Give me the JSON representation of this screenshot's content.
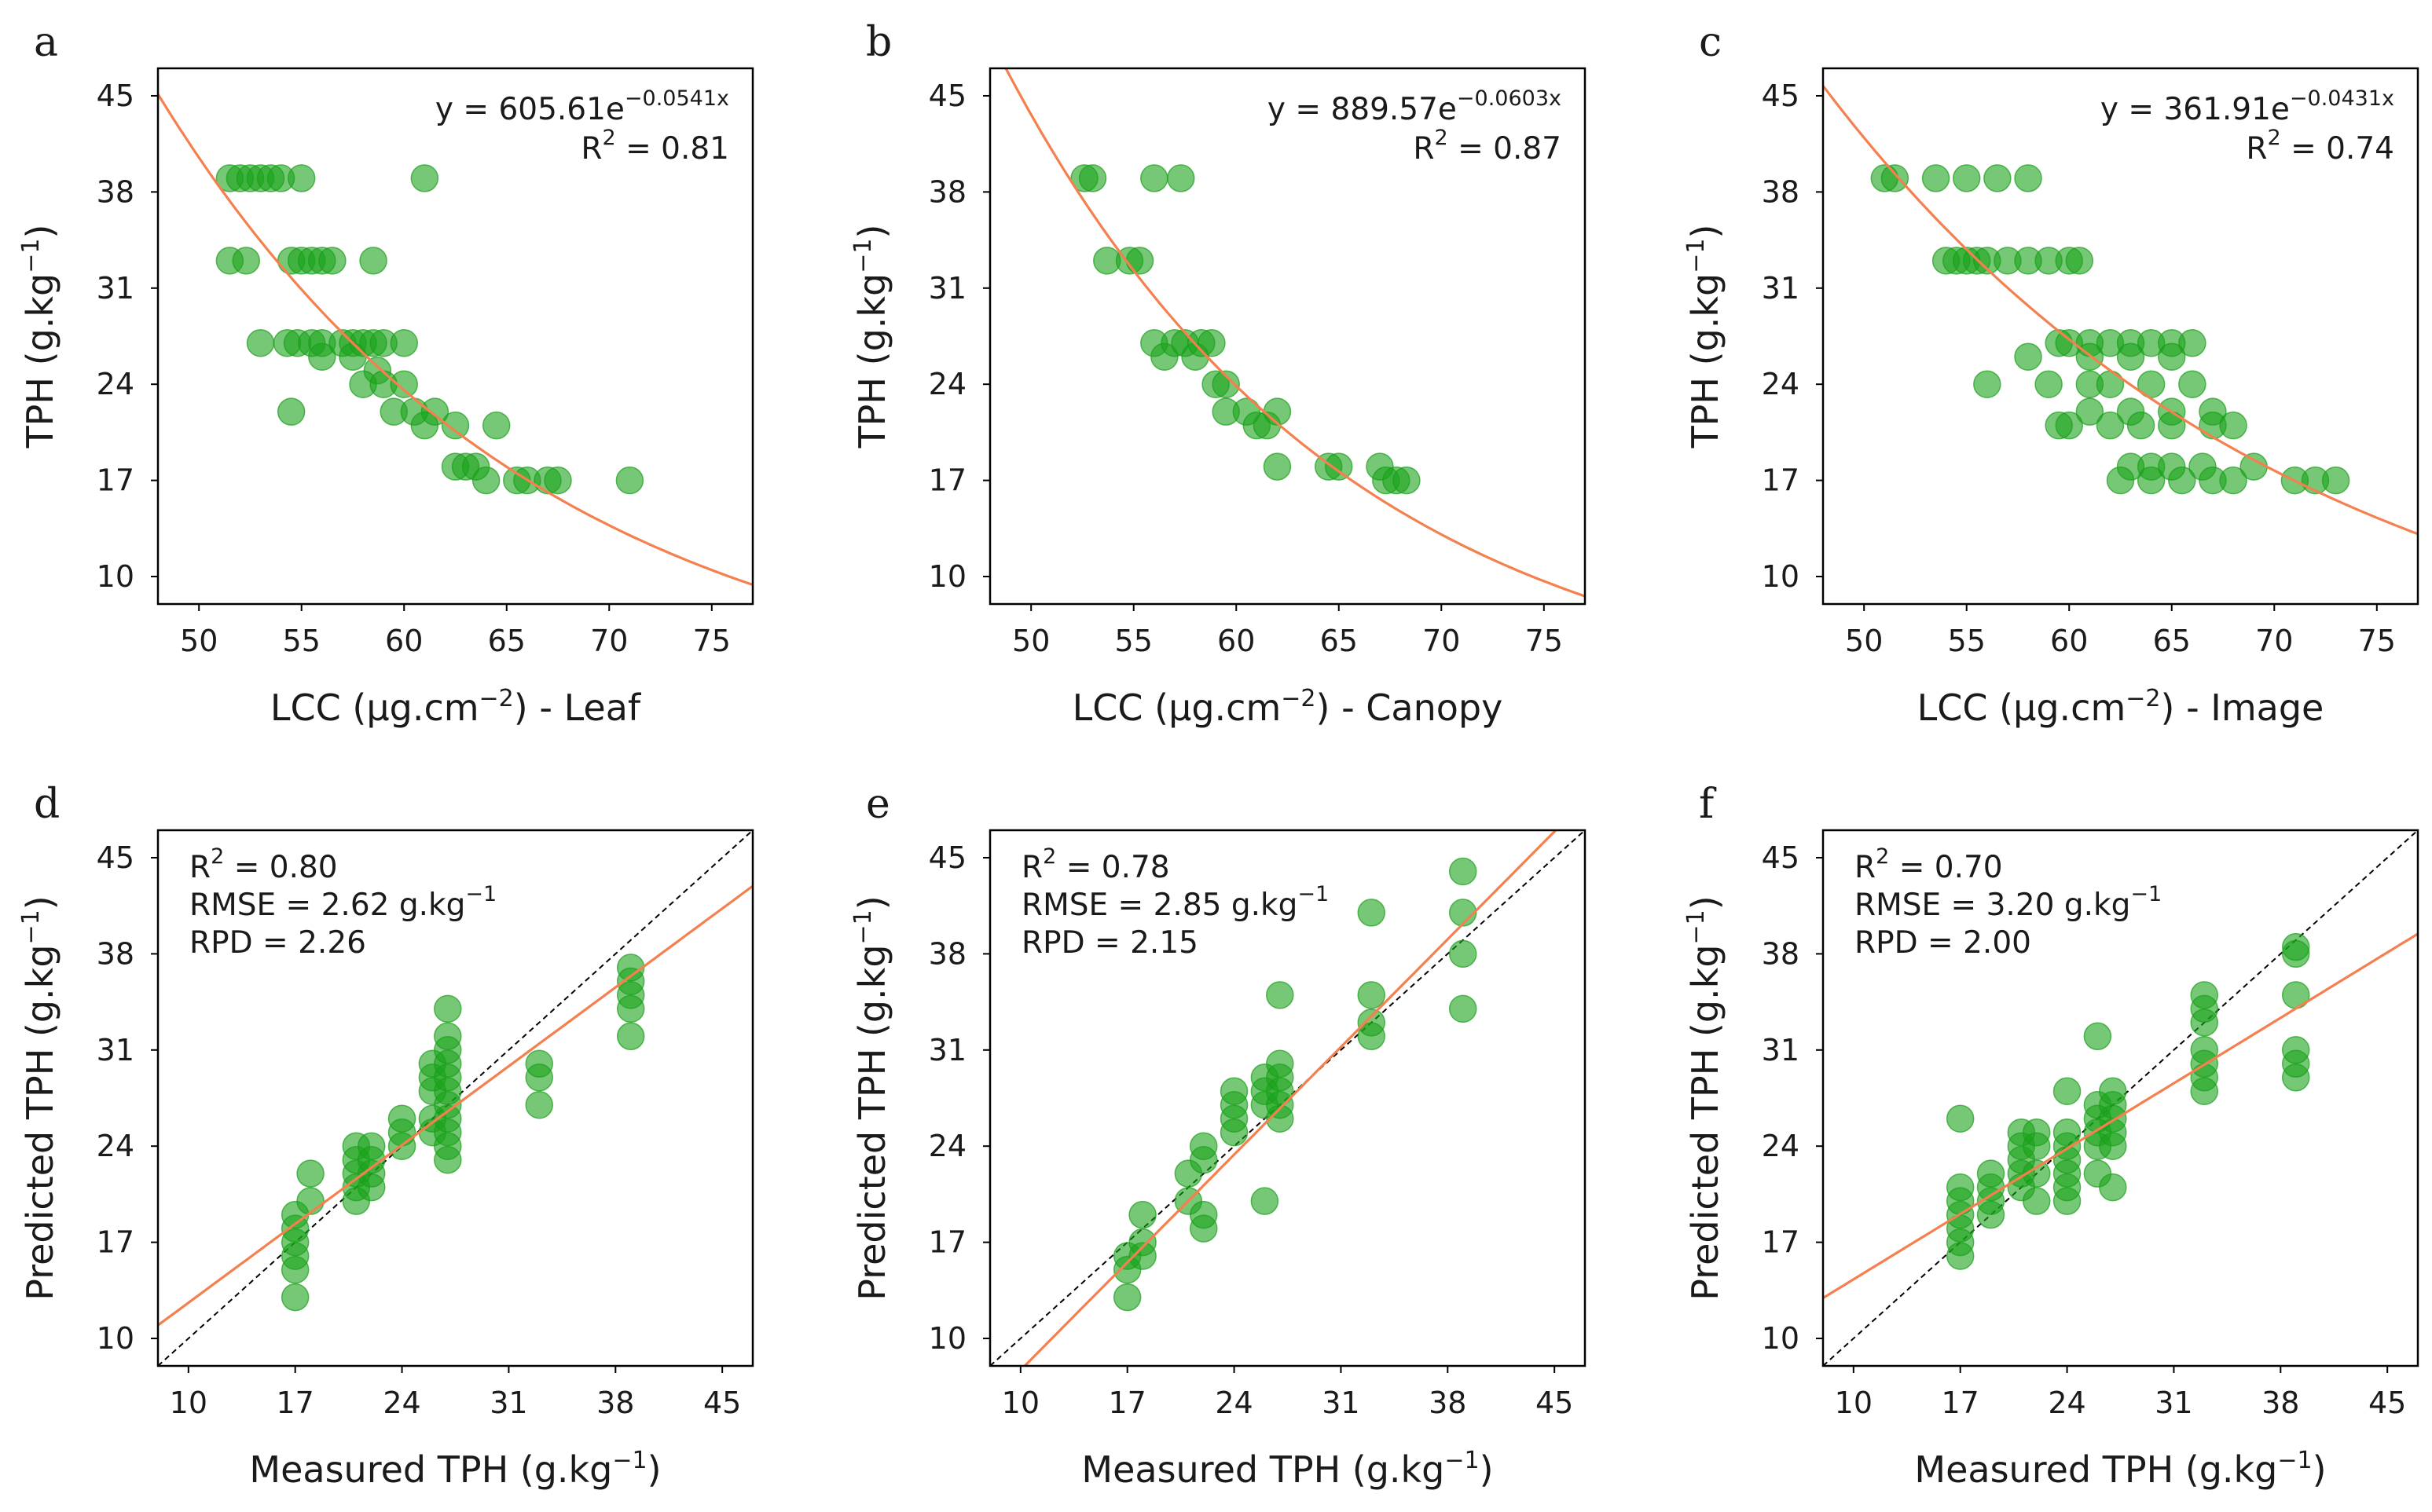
{
  "colors": {
    "point": "#1aa31a",
    "fit_line": "#f4804f",
    "one_to_one": "#000000"
  },
  "chart_data": [
    {
      "type": "scatter",
      "letter": "a",
      "xlabel": "LCC (µg.cm",
      "xlabel_exp": "−2",
      "xlabel_end": ") - Leaf",
      "ylabel": "TPH (g.kg",
      "ylabel_exp": "−1",
      "ylabel_end": ")",
      "xlim": [
        48,
        77
      ],
      "ylim": [
        8,
        47
      ],
      "xticks": [
        50,
        55,
        60,
        65,
        70,
        75
      ],
      "yticks": [
        10,
        17,
        24,
        31,
        38,
        45
      ],
      "equation": {
        "prefix": "y = 605.61e",
        "exponent": "−0.0541x"
      },
      "r2": {
        "label": "R",
        "sup": "2",
        "value": " = 0.81"
      },
      "fit": {
        "kind": "exp",
        "a": 605.61,
        "b": -0.0541
      },
      "points": [
        [
          51.5,
          39
        ],
        [
          52,
          39
        ],
        [
          52.5,
          39
        ],
        [
          53,
          39
        ],
        [
          53.5,
          39
        ],
        [
          54,
          39
        ],
        [
          55,
          39
        ],
        [
          61,
          39
        ],
        [
          51.5,
          33
        ],
        [
          52.3,
          33
        ],
        [
          54.5,
          33
        ],
        [
          55,
          33
        ],
        [
          55.5,
          33
        ],
        [
          56,
          33
        ],
        [
          56.5,
          33
        ],
        [
          58.5,
          33
        ],
        [
          53,
          27
        ],
        [
          54.3,
          27
        ],
        [
          54.8,
          27
        ],
        [
          55.5,
          27
        ],
        [
          56,
          27
        ],
        [
          57,
          27
        ],
        [
          57.5,
          27
        ],
        [
          58,
          27
        ],
        [
          58.5,
          27
        ],
        [
          59,
          27
        ],
        [
          60,
          27
        ],
        [
          56,
          26
        ],
        [
          57.5,
          26
        ],
        [
          58.7,
          25
        ],
        [
          58,
          24
        ],
        [
          59,
          24
        ],
        [
          60,
          24
        ],
        [
          54.5,
          22
        ],
        [
          59.5,
          22
        ],
        [
          60.5,
          22
        ],
        [
          61.5,
          22
        ],
        [
          61,
          21
        ],
        [
          62.5,
          21
        ],
        [
          64.5,
          21
        ],
        [
          62.5,
          18
        ],
        [
          63,
          18
        ],
        [
          63.5,
          18
        ],
        [
          64,
          17
        ],
        [
          65.5,
          17
        ],
        [
          66,
          17
        ],
        [
          67,
          17
        ],
        [
          67.5,
          17
        ],
        [
          71,
          17
        ]
      ]
    },
    {
      "type": "scatter",
      "letter": "b",
      "xlabel": "LCC (µg.cm",
      "xlabel_exp": "−2",
      "xlabel_end": ") - Canopy",
      "ylabel": "TPH (g.kg",
      "ylabel_exp": "−1",
      "ylabel_end": ")",
      "xlim": [
        48,
        77
      ],
      "ylim": [
        8,
        47
      ],
      "xticks": [
        50,
        55,
        60,
        65,
        70,
        75
      ],
      "yticks": [
        10,
        17,
        24,
        31,
        38,
        45
      ],
      "equation": {
        "prefix": "y = 889.57e",
        "exponent": "−0.0603x"
      },
      "r2": {
        "label": "R",
        "sup": "2",
        "value": " = 0.87"
      },
      "fit": {
        "kind": "exp",
        "a": 889.57,
        "b": -0.0603
      },
      "points": [
        [
          52.6,
          39
        ],
        [
          53,
          39
        ],
        [
          56,
          39
        ],
        [
          57.3,
          39
        ],
        [
          53.7,
          33
        ],
        [
          54.8,
          33
        ],
        [
          55.3,
          33
        ],
        [
          56,
          27
        ],
        [
          56.5,
          26
        ],
        [
          57,
          27
        ],
        [
          57.5,
          27
        ],
        [
          58,
          26
        ],
        [
          58.3,
          27
        ],
        [
          58.8,
          27
        ],
        [
          59,
          24
        ],
        [
          59.5,
          24
        ],
        [
          59.5,
          22
        ],
        [
          60.5,
          22
        ],
        [
          61,
          21
        ],
        [
          61.5,
          21
        ],
        [
          62,
          22
        ],
        [
          62,
          18
        ],
        [
          64.5,
          18
        ],
        [
          65,
          18
        ],
        [
          67,
          18
        ],
        [
          67.3,
          17
        ],
        [
          67.8,
          17
        ],
        [
          68.3,
          17
        ]
      ]
    },
    {
      "type": "scatter",
      "letter": "c",
      "xlabel": "LCC (µg.cm",
      "xlabel_exp": "−2",
      "xlabel_end": ") - Image",
      "ylabel": "TPH (g.kg",
      "ylabel_exp": "−1",
      "ylabel_end": ")",
      "xlim": [
        48,
        77
      ],
      "ylim": [
        8,
        47
      ],
      "xticks": [
        50,
        55,
        60,
        65,
        70,
        75
      ],
      "yticks": [
        10,
        17,
        24,
        31,
        38,
        45
      ],
      "equation": {
        "prefix": "y = 361.91e",
        "exponent": "−0.0431x"
      },
      "r2": {
        "label": "R",
        "sup": "2",
        "value": " = 0.74"
      },
      "fit": {
        "kind": "exp",
        "a": 361.91,
        "b": -0.0431
      },
      "points": [
        [
          51,
          39
        ],
        [
          51.5,
          39
        ],
        [
          53.5,
          39
        ],
        [
          55,
          39
        ],
        [
          56.5,
          39
        ],
        [
          58,
          39
        ],
        [
          54,
          33
        ],
        [
          54.5,
          33
        ],
        [
          55,
          33
        ],
        [
          55.5,
          33
        ],
        [
          56,
          33
        ],
        [
          57,
          33
        ],
        [
          58,
          33
        ],
        [
          59,
          33
        ],
        [
          60,
          33
        ],
        [
          60.5,
          33
        ],
        [
          59.5,
          27
        ],
        [
          60,
          27
        ],
        [
          61,
          27
        ],
        [
          62,
          27
        ],
        [
          63,
          27
        ],
        [
          64,
          27
        ],
        [
          65,
          27
        ],
        [
          66,
          27
        ],
        [
          61,
          26
        ],
        [
          63,
          26
        ],
        [
          65,
          26
        ],
        [
          58,
          26
        ],
        [
          59,
          24
        ],
        [
          61,
          24
        ],
        [
          62,
          24
        ],
        [
          64,
          24
        ],
        [
          66,
          24
        ],
        [
          56,
          24
        ],
        [
          61,
          22
        ],
        [
          63,
          22
        ],
        [
          65,
          22
        ],
        [
          67,
          22
        ],
        [
          60,
          21
        ],
        [
          62,
          21
        ],
        [
          63.5,
          21
        ],
        [
          65,
          21
        ],
        [
          67,
          21
        ],
        [
          68,
          21
        ],
        [
          59.5,
          21
        ],
        [
          63,
          18
        ],
        [
          64,
          18
        ],
        [
          65,
          18
        ],
        [
          66.5,
          18
        ],
        [
          69,
          18
        ],
        [
          62.5,
          17
        ],
        [
          64,
          17
        ],
        [
          65.5,
          17
        ],
        [
          67,
          17
        ],
        [
          68,
          17
        ],
        [
          71,
          17
        ],
        [
          72,
          17
        ],
        [
          73,
          17
        ]
      ]
    },
    {
      "type": "scatter",
      "letter": "d",
      "xlabel": "Measured TPH (g.kg",
      "xlabel_exp": "−1",
      "xlabel_end": ")",
      "ylabel": "Predicted TPH (g.kg",
      "ylabel_exp": "−1",
      "ylabel_end": ")",
      "xlim": [
        8,
        47
      ],
      "ylim": [
        8,
        47
      ],
      "xticks": [
        10,
        17,
        24,
        31,
        38,
        45
      ],
      "yticks": [
        10,
        17,
        24,
        31,
        38,
        45
      ],
      "stats": [
        {
          "label": "R",
          "sup": "2",
          "value": " = 0.80"
        },
        {
          "label": "RMSE = 2.62 g.kg",
          "sup": "−1",
          "value": ""
        },
        {
          "label": "RPD = 2.26",
          "sup": "",
          "value": ""
        }
      ],
      "fit": {
        "kind": "linear",
        "slope": 0.82,
        "intercept": 4.4
      },
      "one_to_one": true,
      "points": [
        [
          17,
          13
        ],
        [
          17,
          15
        ],
        [
          17,
          16
        ],
        [
          17,
          17
        ],
        [
          17,
          18
        ],
        [
          17,
          19
        ],
        [
          18,
          20
        ],
        [
          18,
          22
        ],
        [
          21,
          20
        ],
        [
          21,
          21
        ],
        [
          21,
          22
        ],
        [
          21,
          23
        ],
        [
          21,
          24
        ],
        [
          22,
          21
        ],
        [
          22,
          22
        ],
        [
          22,
          23
        ],
        [
          22,
          24
        ],
        [
          24,
          24
        ],
        [
          24,
          25
        ],
        [
          24,
          26
        ],
        [
          26,
          25
        ],
        [
          26,
          26
        ],
        [
          26,
          28
        ],
        [
          26,
          29
        ],
        [
          26,
          30
        ],
        [
          27,
          23
        ],
        [
          27,
          24
        ],
        [
          27,
          25
        ],
        [
          27,
          26
        ],
        [
          27,
          27
        ],
        [
          27,
          28
        ],
        [
          27,
          29
        ],
        [
          27,
          30
        ],
        [
          27,
          31
        ],
        [
          27,
          32
        ],
        [
          27,
          34
        ],
        [
          33,
          27
        ],
        [
          33,
          29
        ],
        [
          33,
          30
        ],
        [
          39,
          32
        ],
        [
          39,
          34
        ],
        [
          39,
          35
        ],
        [
          39,
          36
        ],
        [
          39,
          37
        ]
      ]
    },
    {
      "type": "scatter",
      "letter": "e",
      "xlabel": "Measured TPH (g.kg",
      "xlabel_exp": "−1",
      "xlabel_end": ")",
      "ylabel": "Predicted TPH (g.kg",
      "ylabel_exp": "−1",
      "ylabel_end": ")",
      "xlim": [
        8,
        47
      ],
      "ylim": [
        8,
        47
      ],
      "xticks": [
        10,
        17,
        24,
        31,
        38,
        45
      ],
      "yticks": [
        10,
        17,
        24,
        31,
        38,
        45
      ],
      "stats": [
        {
          "label": "R",
          "sup": "2",
          "value": " = 0.78"
        },
        {
          "label": "RMSE = 2.85 g.kg",
          "sup": "−1",
          "value": ""
        },
        {
          "label": "RPD = 2.15",
          "sup": "",
          "value": ""
        }
      ],
      "fit": {
        "kind": "linear",
        "slope": 1.12,
        "intercept": -3.5
      },
      "one_to_one": true,
      "points": [
        [
          17,
          13
        ],
        [
          17,
          15
        ],
        [
          17,
          16
        ],
        [
          18,
          16
        ],
        [
          18,
          17
        ],
        [
          18,
          19
        ],
        [
          21,
          20
        ],
        [
          21,
          22
        ],
        [
          22,
          18
        ],
        [
          22,
          19
        ],
        [
          22,
          23
        ],
        [
          22,
          24
        ],
        [
          24,
          25
        ],
        [
          24,
          26
        ],
        [
          24,
          27
        ],
        [
          24,
          28
        ],
        [
          26,
          20
        ],
        [
          26,
          27
        ],
        [
          26,
          28
        ],
        [
          26,
          29
        ],
        [
          27,
          26
        ],
        [
          27,
          27
        ],
        [
          27,
          28
        ],
        [
          27,
          29
        ],
        [
          27,
          30
        ],
        [
          27,
          35
        ],
        [
          33,
          32
        ],
        [
          33,
          33
        ],
        [
          33,
          35
        ],
        [
          33,
          41
        ],
        [
          39,
          34
        ],
        [
          39,
          38
        ],
        [
          39,
          41
        ],
        [
          39,
          44
        ]
      ]
    },
    {
      "type": "scatter",
      "letter": "f",
      "xlabel": "Measured TPH (g.kg",
      "xlabel_exp": "−1",
      "xlabel_end": ")",
      "ylabel": "Predicted TPH (g.kg",
      "ylabel_exp": "−1",
      "ylabel_end": ")",
      "xlim": [
        8,
        47
      ],
      "ylim": [
        8,
        47
      ],
      "xticks": [
        10,
        17,
        24,
        31,
        38,
        45
      ],
      "yticks": [
        10,
        17,
        24,
        31,
        38,
        45
      ],
      "stats": [
        {
          "label": "R",
          "sup": "2",
          "value": " = 0.70"
        },
        {
          "label": "RMSE = 3.20 g.kg",
          "sup": "−1",
          "value": ""
        },
        {
          "label": "RPD = 2.00",
          "sup": "",
          "value": ""
        }
      ],
      "fit": {
        "kind": "linear",
        "slope": 0.68,
        "intercept": 7.5
      },
      "one_to_one": true,
      "points": [
        [
          17,
          16
        ],
        [
          17,
          17
        ],
        [
          17,
          18
        ],
        [
          17,
          19
        ],
        [
          17,
          20
        ],
        [
          17,
          21
        ],
        [
          17,
          26
        ],
        [
          19,
          19
        ],
        [
          19,
          20
        ],
        [
          19,
          21
        ],
        [
          19,
          22
        ],
        [
          21,
          21
        ],
        [
          21,
          22
        ],
        [
          21,
          23
        ],
        [
          21,
          24
        ],
        [
          21,
          25
        ],
        [
          22,
          20
        ],
        [
          22,
          22
        ],
        [
          22,
          24
        ],
        [
          22,
          25
        ],
        [
          24,
          20
        ],
        [
          24,
          21
        ],
        [
          24,
          22
        ],
        [
          24,
          23
        ],
        [
          24,
          24
        ],
        [
          24,
          25
        ],
        [
          24,
          28
        ],
        [
          26,
          22
        ],
        [
          26,
          24
        ],
        [
          26,
          25
        ],
        [
          26,
          26
        ],
        [
          26,
          27
        ],
        [
          26,
          32
        ],
        [
          27,
          21
        ],
        [
          27,
          24
        ],
        [
          27,
          25
        ],
        [
          27,
          26
        ],
        [
          27,
          27
        ],
        [
          27,
          28
        ],
        [
          33,
          28
        ],
        [
          33,
          29
        ],
        [
          33,
          30
        ],
        [
          33,
          31
        ],
        [
          33,
          33
        ],
        [
          33,
          34
        ],
        [
          33,
          35
        ],
        [
          39,
          29
        ],
        [
          39,
          30
        ],
        [
          39,
          31
        ],
        [
          39,
          35
        ],
        [
          39,
          38
        ],
        [
          39,
          38.5
        ]
      ]
    }
  ]
}
